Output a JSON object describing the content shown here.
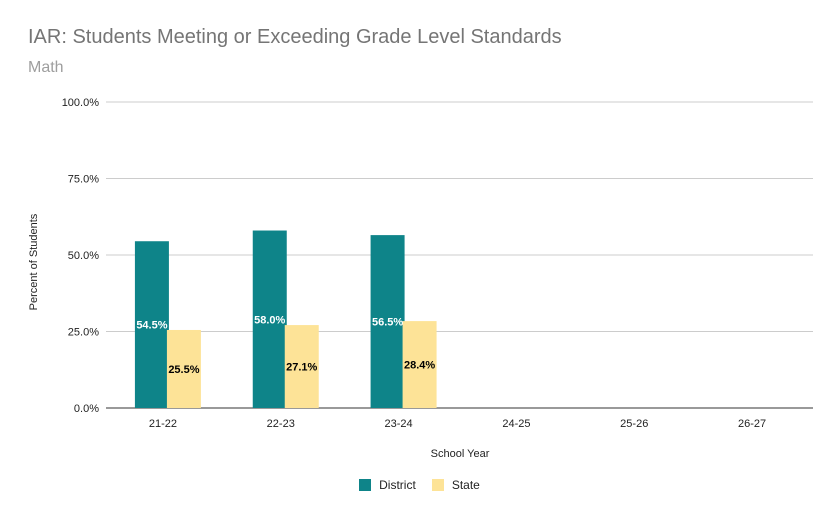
{
  "chart_data": {
    "type": "bar",
    "title": "IAR: Students Meeting or Exceeding Grade Level Standards",
    "subtitle": "Math",
    "xlabel": "School Year",
    "ylabel": "Percent of Students",
    "categories": [
      "21-22",
      "22-23",
      "23-24",
      "24-25",
      "25-26",
      "26-27"
    ],
    "ylim": [
      0,
      100
    ],
    "yticks": [
      "0.0%",
      "25.0%",
      "50.0%",
      "75.0%",
      "100.0%"
    ],
    "ytick_values": [
      0,
      25,
      50,
      75,
      100
    ],
    "grid": true,
    "legend_position": "bottom",
    "series": [
      {
        "name": "District",
        "color": "#0e8489",
        "label_color": "#ffffff",
        "values": [
          54.5,
          58.0,
          56.5,
          null,
          null,
          null
        ],
        "labels": [
          "54.5%",
          "58.0%",
          "56.5%",
          "",
          "",
          ""
        ]
      },
      {
        "name": "State",
        "color": "#fde397",
        "label_color": "#000000",
        "values": [
          25.5,
          27.1,
          28.4,
          null,
          null,
          null
        ],
        "labels": [
          "25.5%",
          "27.1%",
          "28.4%",
          "",
          "",
          ""
        ]
      }
    ]
  }
}
